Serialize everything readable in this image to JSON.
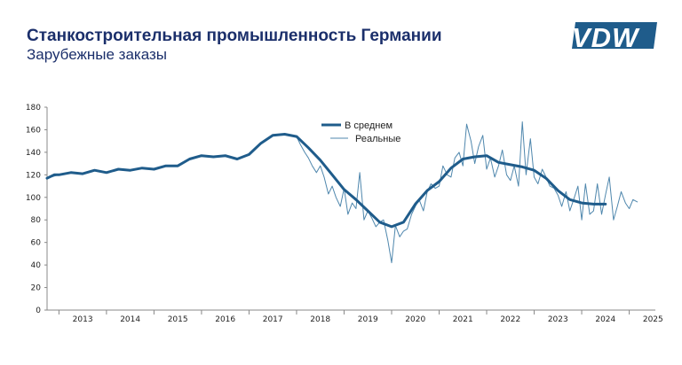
{
  "header": {
    "title": "Станкостроительная промышленность Германии",
    "subtitle": "Зарубежные заказы",
    "logo_text": "VDW"
  },
  "colors": {
    "title": "#1b2f6b",
    "avg_line": "#1f5c8b",
    "real_line": "#4f87ad",
    "logo": "#1f5c8b"
  },
  "chart_data": {
    "type": "line",
    "x_unit": "year",
    "xlim": [
      2012.75,
      2025.55
    ],
    "ylim": [
      0,
      180
    ],
    "yticks": [
      0,
      20,
      40,
      60,
      80,
      100,
      120,
      140,
      160,
      180
    ],
    "xticks": [
      "2013",
      "2014",
      "2015",
      "2016",
      "2017",
      "2018",
      "2019",
      "2020",
      "2021",
      "2022",
      "2023",
      "2024",
      "2025"
    ],
    "grid": false,
    "legend_position": "top-center",
    "series": [
      {
        "name": "В среднем",
        "x": [
          2012.75,
          2012.9,
          2013.0,
          2013.25,
          2013.5,
          2013.75,
          2014.0,
          2014.25,
          2014.5,
          2014.75,
          2015.0,
          2015.25,
          2015.5,
          2015.75,
          2016.0,
          2016.25,
          2016.5,
          2016.75,
          2017.0,
          2017.25,
          2017.5,
          2017.75,
          2018.0,
          2018.25,
          2018.5,
          2018.75,
          2019.0,
          2019.25,
          2019.5,
          2019.75,
          2020.0,
          2020.25,
          2020.5,
          2020.75,
          2021.0,
          2021.25,
          2021.5,
          2021.75,
          2022.0,
          2022.25,
          2022.5,
          2022.75,
          2023.0,
          2023.25,
          2023.5,
          2023.75,
          2024.0,
          2024.25,
          2024.5
        ],
        "values": [
          117,
          120,
          120,
          122,
          121,
          124,
          122,
          125,
          124,
          126,
          125,
          128,
          128,
          134,
          137,
          136,
          137,
          134,
          138,
          148,
          155,
          156,
          154,
          144,
          133,
          120,
          107,
          98,
          88,
          78,
          74,
          78,
          94,
          106,
          114,
          126,
          134,
          136,
          137,
          131,
          129,
          127,
          124,
          117,
          106,
          98,
          95,
          94,
          94
        ]
      },
      {
        "name": "Реальные",
        "x": [
          2012.75,
          2013.0,
          2013.25,
          2013.5,
          2013.75,
          2014.0,
          2014.25,
          2014.5,
          2014.75,
          2015.0,
          2015.25,
          2015.5,
          2015.75,
          2016.0,
          2016.25,
          2016.5,
          2016.75,
          2017.0,
          2017.25,
          2017.5,
          2017.75,
          2018.0,
          2018.08,
          2018.17,
          2018.25,
          2018.33,
          2018.42,
          2018.5,
          2018.58,
          2018.67,
          2018.75,
          2018.83,
          2018.92,
          2019.0,
          2019.08,
          2019.17,
          2019.25,
          2019.33,
          2019.42,
          2019.5,
          2019.58,
          2019.67,
          2019.75,
          2019.83,
          2019.92,
          2020.0,
          2020.08,
          2020.17,
          2020.25,
          2020.33,
          2020.42,
          2020.5,
          2020.58,
          2020.67,
          2020.75,
          2020.83,
          2020.92,
          2021.0,
          2021.08,
          2021.17,
          2021.25,
          2021.33,
          2021.42,
          2021.5,
          2021.58,
          2021.67,
          2021.75,
          2021.83,
          2021.92,
          2022.0,
          2022.08,
          2022.17,
          2022.25,
          2022.33,
          2022.42,
          2022.5,
          2022.58,
          2022.67,
          2022.75,
          2022.83,
          2022.92,
          2023.0,
          2023.08,
          2023.17,
          2023.25,
          2023.33,
          2023.42,
          2023.5,
          2023.58,
          2023.67,
          2023.75,
          2023.83,
          2023.92,
          2024.0,
          2024.08,
          2024.17,
          2024.25,
          2024.33,
          2024.42,
          2024.5,
          2024.58,
          2024.67,
          2024.75,
          2024.83,
          2024.92,
          2025.0,
          2025.08,
          2025.17
        ],
        "values": [
          117,
          120,
          122,
          121,
          124,
          122,
          125,
          124,
          126,
          125,
          128,
          128,
          134,
          137,
          136,
          137,
          134,
          138,
          148,
          155,
          156,
          154,
          147,
          140,
          135,
          128,
          122,
          128,
          118,
          103,
          110,
          100,
          92,
          108,
          85,
          95,
          90,
          122,
          80,
          88,
          82,
          74,
          78,
          80,
          62,
          42,
          75,
          65,
          70,
          72,
          85,
          92,
          98,
          88,
          105,
          112,
          108,
          110,
          128,
          120,
          118,
          135,
          140,
          128,
          165,
          150,
          130,
          145,
          155,
          125,
          135,
          118,
          128,
          142,
          120,
          115,
          128,
          110,
          167,
          120,
          152,
          118,
          112,
          125,
          118,
          110,
          108,
          102,
          92,
          105,
          88,
          98,
          110,
          80,
          112,
          85,
          88,
          112,
          85,
          102,
          118,
          80,
          92,
          105,
          95,
          90,
          98,
          96
        ]
      }
    ]
  }
}
